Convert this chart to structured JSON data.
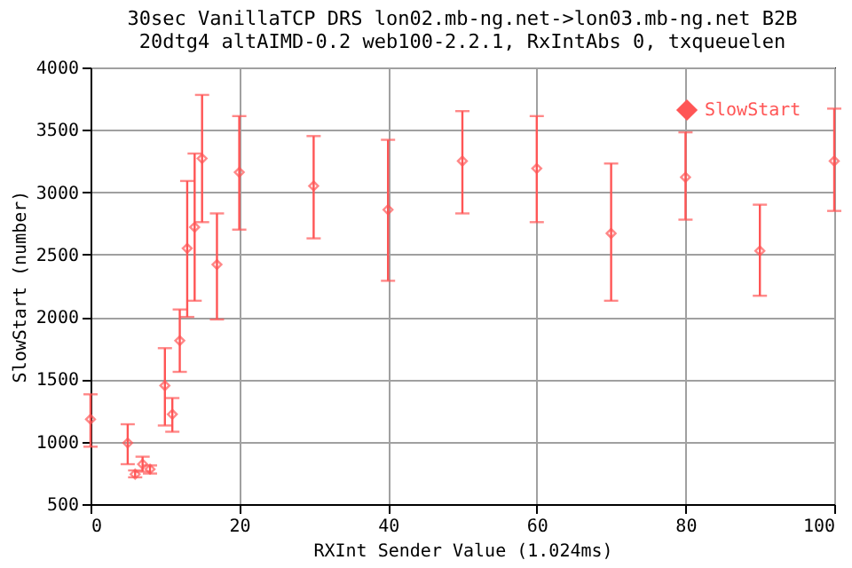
{
  "chart_data": {
    "type": "scatter",
    "title": [
      "30sec VanillaTCP DRS lon02.mb-ng.net->lon03.mb-ng.net B2B",
      "20dtg4 altAIMD-0.2 web100-2.2.1, RxIntAbs 0, txqueuelen"
    ],
    "xlabel": "RXInt Sender Value (1.024ms)",
    "ylabel": "SlowStart (number)",
    "x": [
      0,
      5,
      6,
      7,
      8,
      10,
      11,
      12,
      13,
      14,
      15,
      17,
      20,
      30,
      40,
      50,
      60,
      70,
      80,
      90,
      100
    ],
    "series": [
      {
        "name": "SlowStart",
        "color": "#ff5555",
        "values": [
          1180,
          990,
          740,
          820,
          780,
          1450,
          1220,
          1810,
          2550,
          2720,
          3270,
          2420,
          3160,
          3050,
          2860,
          3250,
          3190,
          2670,
          3120,
          2530,
          3250
        ],
        "errors": [
          [
            960,
            1380
          ],
          [
            820,
            1140
          ],
          [
            715,
            770
          ],
          [
            760,
            880
          ],
          [
            745,
            810
          ],
          [
            1130,
            1750
          ],
          [
            1080,
            1350
          ],
          [
            1560,
            2060
          ],
          [
            2000,
            3090
          ],
          [
            2130,
            3310
          ],
          [
            2760,
            3780
          ],
          [
            1980,
            2830
          ],
          [
            2700,
            3610
          ],
          [
            2630,
            3450
          ],
          [
            2290,
            3420
          ],
          [
            2830,
            3650
          ],
          [
            2760,
            3610
          ],
          [
            2130,
            3230
          ],
          [
            2780,
            3480
          ],
          [
            2170,
            2900
          ],
          [
            2850,
            3670
          ]
        ]
      }
    ],
    "xlim": [
      0,
      100
    ],
    "xticks": [
      0,
      20,
      40,
      60,
      80,
      100
    ],
    "ylim": [
      500,
      4000
    ],
    "yticks": [
      500,
      1000,
      1500,
      2000,
      2500,
      3000,
      3500,
      4000
    ],
    "grid": true,
    "legend": "top right",
    "marker": "diamond"
  }
}
